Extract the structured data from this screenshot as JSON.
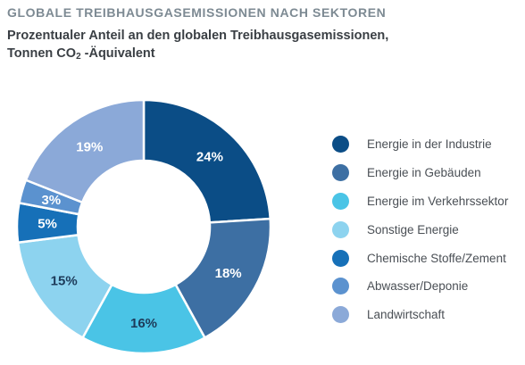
{
  "title": "GLOBALE TREIBHAUSGASEMISSIONEN NACH SEKTOREN",
  "subtitle": {
    "line1": "Prozentualer Anteil an den globalen Treibhausgasemissionen,",
    "line2_prefix": "Tonnen CO",
    "line2_sub": "2",
    "line2_suffix": " -Äquivalent"
  },
  "chart_data": {
    "type": "pie",
    "variant": "donut",
    "categories": [
      "Energie in der Industrie",
      "Energie in Gebäuden",
      "Energie im Verkehrssektor",
      "Sonstige Energie",
      "Chemische Stoffe/Zement",
      "Abwasser/Deponie",
      "Landwirtschaft"
    ],
    "values": [
      24,
      18,
      16,
      15,
      5,
      3,
      19
    ],
    "labels": [
      "24%",
      "18%",
      "16%",
      "15%",
      "5%",
      "3%",
      "19%"
    ],
    "colors": [
      "#0b4d86",
      "#3d6fa3",
      "#4ac4e6",
      "#8dd3ef",
      "#1670b8",
      "#5b92cf",
      "#8ba9d8"
    ],
    "label_colors": [
      "#ffffff",
      "#ffffff",
      "#1d3b5a",
      "#1d3b5a",
      "#ffffff",
      "#ffffff",
      "#ffffff"
    ],
    "legend_position": "right"
  }
}
